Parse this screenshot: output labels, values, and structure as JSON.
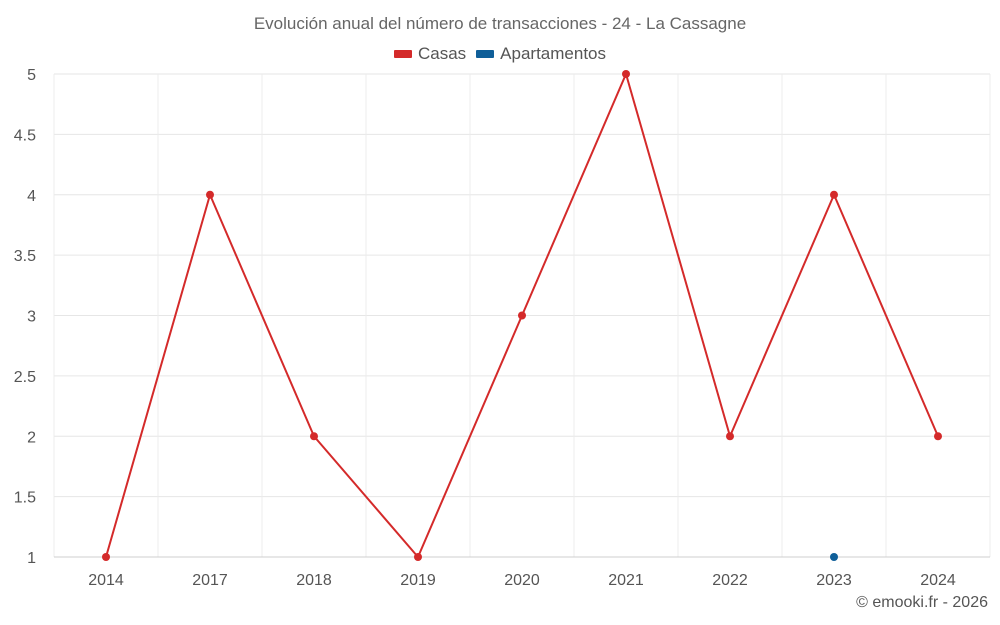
{
  "chart_data": {
    "type": "line",
    "title": "Evolución anual del número de transacciones - 24 - La Cassagne",
    "categories": [
      "2014",
      "2017",
      "2018",
      "2019",
      "2020",
      "2021",
      "2022",
      "2023",
      "2024"
    ],
    "series": [
      {
        "name": "Casas",
        "color": "#d42a2a",
        "values": [
          1,
          4,
          2,
          1,
          3,
          5,
          2,
          4,
          2
        ]
      },
      {
        "name": "Apartamentos",
        "color": "#0f5f99",
        "values": [
          null,
          null,
          null,
          null,
          null,
          null,
          null,
          1,
          null
        ]
      }
    ],
    "ylim": [
      1,
      5
    ],
    "yticks": [
      "1",
      "1.5",
      "2",
      "2.5",
      "3",
      "3.5",
      "4",
      "4.5",
      "5"
    ],
    "grid": true,
    "legend": "top-center"
  },
  "credit": "© emooki.fr - 2026"
}
